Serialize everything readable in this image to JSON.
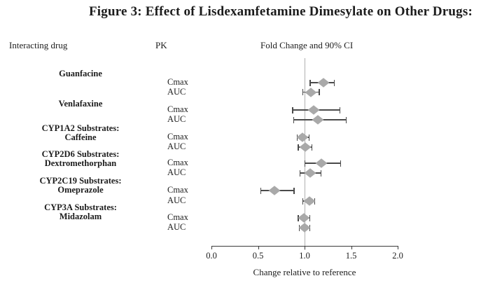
{
  "chart_data": {
    "type": "forest",
    "title": "Figure 3: Effect of Lisdexamfetamine Dimesylate on Other Drugs:",
    "columns": {
      "interacting_drug": "Interacting drug",
      "pk": "PK",
      "fold_change": "Fold Change and 90% CI"
    },
    "xlabel": "Change relative to reference",
    "xlim": [
      0.0,
      2.0
    ],
    "xticks": [
      0.0,
      0.5,
      1.0,
      1.5,
      2.0
    ],
    "reference_line": 1.0,
    "grid": false,
    "groups": [
      {
        "label_lines": [
          "Guanfacine"
        ],
        "rows": [
          {
            "pk": "Cmax",
            "estimate": 1.2,
            "ci_low": 1.06,
            "ci_high": 1.32
          },
          {
            "pk": "AUC",
            "estimate": 1.07,
            "ci_low": 0.98,
            "ci_high": 1.16
          }
        ]
      },
      {
        "label_lines": [
          "Venlafaxine"
        ],
        "rows": [
          {
            "pk": "Cmax",
            "estimate": 1.1,
            "ci_low": 0.87,
            "ci_high": 1.38
          },
          {
            "pk": "AUC",
            "estimate": 1.14,
            "ci_low": 0.88,
            "ci_high": 1.45
          }
        ]
      },
      {
        "label_lines": [
          "CYP1A2 Substrates:",
          "Caffeine"
        ],
        "rows": [
          {
            "pk": "Cmax",
            "estimate": 0.98,
            "ci_low": 0.92,
            "ci_high": 1.05
          },
          {
            "pk": "AUC",
            "estimate": 1.01,
            "ci_low": 0.93,
            "ci_high": 1.08
          }
        ]
      },
      {
        "label_lines": [
          "CYP2D6 Substrates:",
          "Dextromethorphan"
        ],
        "rows": [
          {
            "pk": "Cmax",
            "estimate": 1.18,
            "ci_low": 1.0,
            "ci_high": 1.39
          },
          {
            "pk": "AUC",
            "estimate": 1.06,
            "ci_low": 0.95,
            "ci_high": 1.18
          }
        ]
      },
      {
        "label_lines": [
          "CYP2C19 Substrates:",
          "Omeprazole"
        ],
        "rows": [
          {
            "pk": "Cmax",
            "estimate": 0.68,
            "ci_low": 0.53,
            "ci_high": 0.89
          },
          {
            "pk": "AUC",
            "estimate": 1.05,
            "ci_low": 0.98,
            "ci_high": 1.11
          }
        ]
      },
      {
        "label_lines": [
          "CYP3A Substrates:",
          "Midazolam"
        ],
        "rows": [
          {
            "pk": "Cmax",
            "estimate": 0.99,
            "ci_low": 0.93,
            "ci_high": 1.06
          },
          {
            "pk": "AUC",
            "estimate": 1.0,
            "ci_low": 0.94,
            "ci_high": 1.06
          }
        ]
      }
    ],
    "colors": {
      "diamond": "#a9a9a9",
      "ci_line": "#4a4a4a",
      "reference_line": "#b0b0b0",
      "axis": "#3a3a3a",
      "text": "#1c1c1c"
    }
  }
}
